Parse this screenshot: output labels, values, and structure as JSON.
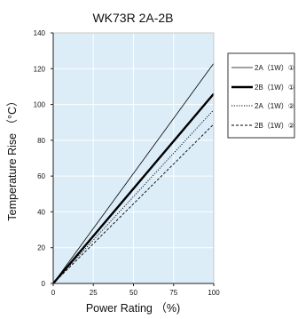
{
  "chart_data": {
    "type": "line",
    "title": "WK73R 2A-2B",
    "xlabel": "Power Rating （%)",
    "ylabel": "Temperature Rise （°C）",
    "xlim": [
      0,
      100
    ],
    "ylim": [
      0,
      140
    ],
    "x_ticks": [
      0,
      25,
      50,
      75,
      100
    ],
    "y_ticks": [
      0,
      20,
      40,
      60,
      80,
      100,
      120,
      140
    ],
    "x_tick_labels": [
      "0",
      "25",
      "50",
      "75",
      "100"
    ],
    "y_tick_labels": [
      "0",
      "20",
      "40",
      "60",
      "80",
      "100",
      "120",
      "140"
    ],
    "grid": true,
    "plot_background": "#dcedf8",
    "grid_color": "#ffffff",
    "line_color": "#000000",
    "legend_position": "right",
    "series": [
      {
        "name": "2A（1W）①",
        "x": [
          0,
          100
        ],
        "y": [
          0,
          123
        ],
        "style": "solid-thin"
      },
      {
        "name": "2B（1W）①",
        "x": [
          0,
          100
        ],
        "y": [
          0,
          106
        ],
        "style": "solid-thick"
      },
      {
        "name": "2A（1W）②",
        "x": [
          0,
          100
        ],
        "y": [
          0,
          97
        ],
        "style": "dotted"
      },
      {
        "name": "2B（1W）②",
        "x": [
          0,
          100
        ],
        "y": [
          0,
          89
        ],
        "style": "dashed"
      }
    ]
  }
}
